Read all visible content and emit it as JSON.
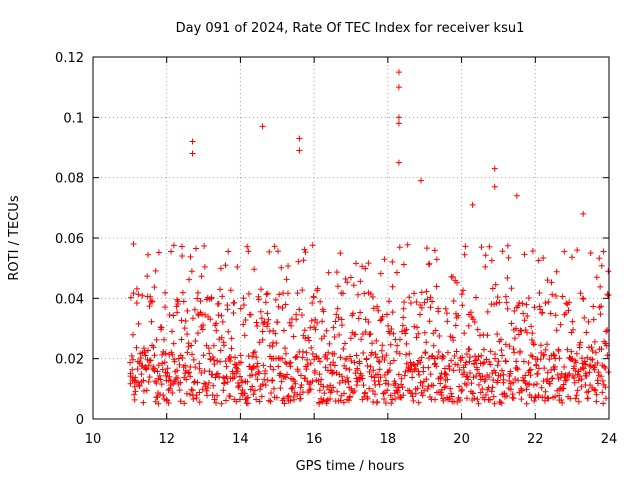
{
  "chart_data": {
    "type": "scatter",
    "title": "Day 091 of 2024, Rate Of TEC Index for receiver ksu1",
    "xlabel": "GPS time / hours",
    "ylabel": "ROTI / TECUs",
    "xlim": [
      10,
      24
    ],
    "ylim": [
      0,
      0.12
    ],
    "x_ticks": [
      "10",
      "12",
      "14",
      "16",
      "18",
      "20",
      "22",
      "24"
    ],
    "y_ticks": [
      "0",
      "0.02",
      "0.04",
      "0.06",
      "0.08",
      "0.1",
      "0.12"
    ],
    "grid": true,
    "marker": "+",
    "color": "#ff0000",
    "x_data_range": [
      11.0,
      24.0
    ],
    "baseline_band": [
      0.005,
      0.022
    ],
    "notable_points": [
      {
        "x": 11.1,
        "y": 0.058
      },
      {
        "x": 12.7,
        "y": 0.092
      },
      {
        "x": 12.7,
        "y": 0.088
      },
      {
        "x": 14.6,
        "y": 0.097
      },
      {
        "x": 15.6,
        "y": 0.093
      },
      {
        "x": 15.6,
        "y": 0.089
      },
      {
        "x": 18.3,
        "y": 0.115
      },
      {
        "x": 18.3,
        "y": 0.11
      },
      {
        "x": 18.3,
        "y": 0.1
      },
      {
        "x": 18.3,
        "y": 0.098
      },
      {
        "x": 18.3,
        "y": 0.085
      },
      {
        "x": 18.9,
        "y": 0.079
      },
      {
        "x": 20.3,
        "y": 0.071
      },
      {
        "x": 20.9,
        "y": 0.083
      },
      {
        "x": 20.9,
        "y": 0.077
      },
      {
        "x": 21.5,
        "y": 0.074
      },
      {
        "x": 23.3,
        "y": 0.068
      }
    ]
  }
}
